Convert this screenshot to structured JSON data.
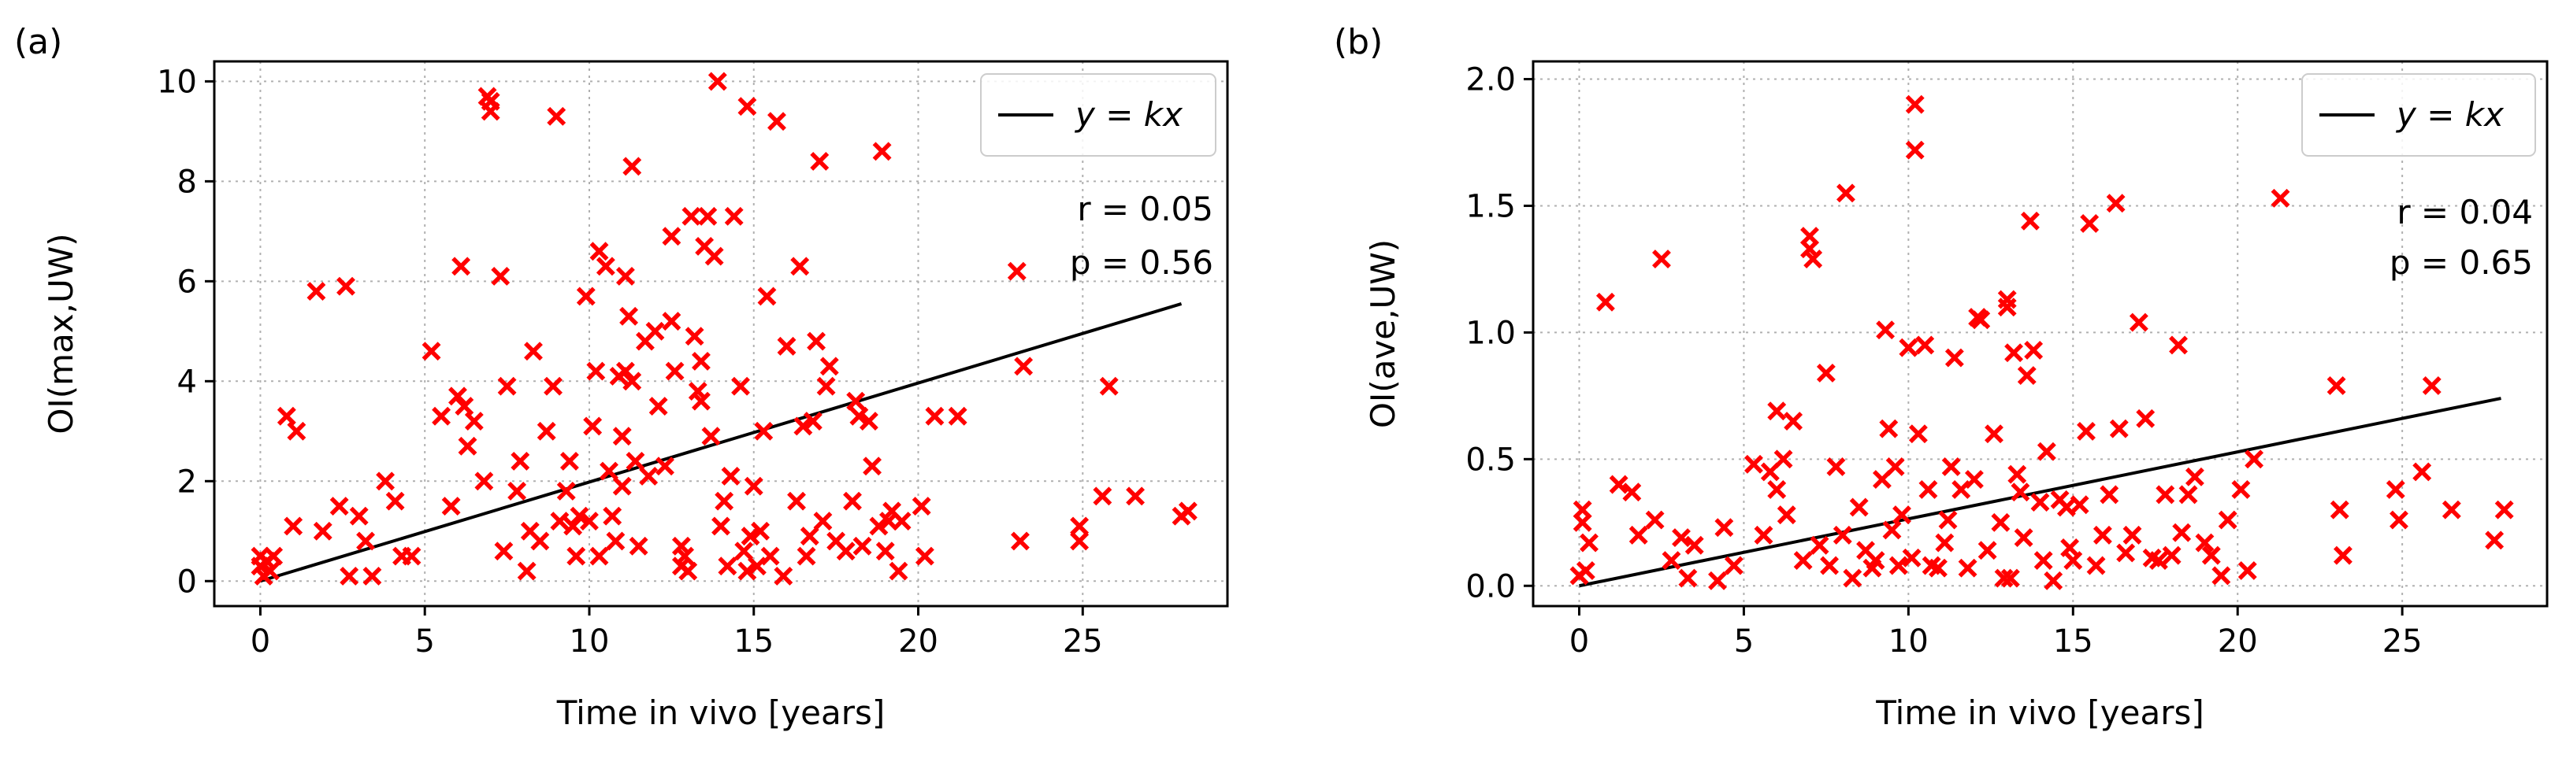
{
  "chart_data": [
    {
      "type": "scatter",
      "panel_label": "(a)",
      "xlabel": "Time in vivo [years]",
      "ylabel": "OI(max,UW)",
      "xlim": [
        -1.4,
        29.4
      ],
      "ylim": [
        -0.5,
        10.4
      ],
      "xticks": [
        0,
        5,
        10,
        15,
        20,
        25
      ],
      "yticks": [
        0,
        2,
        4,
        6,
        8,
        10
      ],
      "grid": true,
      "legend": {
        "label": "y = kx",
        "placement": "upper right"
      },
      "annotations": {
        "r": "r = 0.05",
        "p": "p = 0.56"
      },
      "colors": {
        "points": "#ff0000",
        "line": "#000000"
      },
      "fit_line": {
        "x": [
          0,
          28
        ],
        "y": [
          0,
          5.55
        ]
      },
      "points": [
        [
          0,
          0.5
        ],
        [
          0,
          0.3
        ],
        [
          0.1,
          0.1
        ],
        [
          0.2,
          0.4
        ],
        [
          0.3,
          0.2
        ],
        [
          0.4,
          0.5
        ],
        [
          0.8,
          3.3
        ],
        [
          1.0,
          1.1
        ],
        [
          1.1,
          3.0
        ],
        [
          1.7,
          5.8
        ],
        [
          1.9,
          1.0
        ],
        [
          2.4,
          1.5
        ],
        [
          2.6,
          5.9
        ],
        [
          2.7,
          0.1
        ],
        [
          3.0,
          1.3
        ],
        [
          3.2,
          0.8
        ],
        [
          3.4,
          0.1
        ],
        [
          3.8,
          2.0
        ],
        [
          4.1,
          1.6
        ],
        [
          4.3,
          0.5
        ],
        [
          4.6,
          0.5
        ],
        [
          5.2,
          4.6
        ],
        [
          5.5,
          3.3
        ],
        [
          5.8,
          1.5
        ],
        [
          6.0,
          3.7
        ],
        [
          6.1,
          6.3
        ],
        [
          6.2,
          3.5
        ],
        [
          6.3,
          2.7
        ],
        [
          6.5,
          3.2
        ],
        [
          6.8,
          2.0
        ],
        [
          6.9,
          9.7
        ],
        [
          7.0,
          9.4
        ],
        [
          7.0,
          9.6
        ],
        [
          7.3,
          6.1
        ],
        [
          7.4,
          0.6
        ],
        [
          7.5,
          3.9
        ],
        [
          7.8,
          1.8
        ],
        [
          7.9,
          2.4
        ],
        [
          8.1,
          0.2
        ],
        [
          8.2,
          1.0
        ],
        [
          8.3,
          4.6
        ],
        [
          8.5,
          0.8
        ],
        [
          8.7,
          3.0
        ],
        [
          8.9,
          3.9
        ],
        [
          9.0,
          9.3
        ],
        [
          9.1,
          1.2
        ],
        [
          9.3,
          1.8
        ],
        [
          9.4,
          2.4
        ],
        [
          9.5,
          1.1
        ],
        [
          9.6,
          0.5
        ],
        [
          9.7,
          1.3
        ],
        [
          9.9,
          5.7
        ],
        [
          10.0,
          1.2
        ],
        [
          10.1,
          3.1
        ],
        [
          10.2,
          4.2
        ],
        [
          10.3,
          0.5
        ],
        [
          10.3,
          6.6
        ],
        [
          10.5,
          6.3
        ],
        [
          10.6,
          2.2
        ],
        [
          10.7,
          1.3
        ],
        [
          10.8,
          0.8
        ],
        [
          10.9,
          4.1
        ],
        [
          11.0,
          2.9
        ],
        [
          11.0,
          1.9
        ],
        [
          11.1,
          6.1
        ],
        [
          11.1,
          4.2
        ],
        [
          11.2,
          5.3
        ],
        [
          11.3,
          8.3
        ],
        [
          11.3,
          4.0
        ],
        [
          11.4,
          2.4
        ],
        [
          11.5,
          0.7
        ],
        [
          11.7,
          4.8
        ],
        [
          11.8,
          2.1
        ],
        [
          12.0,
          5.0
        ],
        [
          12.1,
          3.5
        ],
        [
          12.3,
          2.3
        ],
        [
          12.5,
          5.2
        ],
        [
          12.5,
          6.9
        ],
        [
          12.6,
          4.2
        ],
        [
          12.8,
          0.3
        ],
        [
          12.8,
          0.7
        ],
        [
          12.9,
          0.5
        ],
        [
          13.0,
          0.2
        ],
        [
          13.1,
          7.3
        ],
        [
          13.2,
          4.9
        ],
        [
          13.3,
          3.8
        ],
        [
          13.4,
          4.4
        ],
        [
          13.4,
          3.6
        ],
        [
          13.5,
          6.7
        ],
        [
          13.6,
          7.3
        ],
        [
          13.7,
          2.9
        ],
        [
          13.8,
          6.5
        ],
        [
          13.9,
          10.0
        ],
        [
          14.0,
          1.1
        ],
        [
          14.1,
          1.6
        ],
        [
          14.2,
          0.3
        ],
        [
          14.3,
          2.1
        ],
        [
          14.4,
          7.3
        ],
        [
          14.6,
          3.9
        ],
        [
          14.7,
          0.6
        ],
        [
          14.8,
          9.5
        ],
        [
          14.8,
          0.2
        ],
        [
          14.9,
          0.9
        ],
        [
          15.0,
          1.9
        ],
        [
          15.1,
          0.3
        ],
        [
          15.2,
          1.0
        ],
        [
          15.3,
          3.0
        ],
        [
          15.4,
          5.7
        ],
        [
          15.5,
          0.5
        ],
        [
          15.7,
          9.2
        ],
        [
          15.9,
          0.1
        ],
        [
          16.0,
          4.7
        ],
        [
          16.3,
          1.6
        ],
        [
          16.4,
          6.3
        ],
        [
          16.5,
          3.1
        ],
        [
          16.6,
          0.5
        ],
        [
          16.7,
          0.9
        ],
        [
          16.8,
          3.2
        ],
        [
          16.9,
          4.8
        ],
        [
          17.0,
          8.4
        ],
        [
          17.1,
          1.2
        ],
        [
          17.2,
          3.9
        ],
        [
          17.3,
          4.3
        ],
        [
          17.5,
          0.8
        ],
        [
          17.8,
          0.6
        ],
        [
          18.0,
          1.6
        ],
        [
          18.1,
          3.6
        ],
        [
          18.2,
          3.3
        ],
        [
          18.3,
          0.7
        ],
        [
          18.5,
          3.2
        ],
        [
          18.6,
          2.3
        ],
        [
          18.8,
          1.1
        ],
        [
          18.9,
          8.6
        ],
        [
          19.0,
          0.6
        ],
        [
          19.1,
          1.2
        ],
        [
          19.2,
          1.4
        ],
        [
          19.4,
          0.2
        ],
        [
          19.5,
          1.2
        ],
        [
          20.1,
          1.5
        ],
        [
          20.2,
          0.5
        ],
        [
          20.5,
          3.3
        ],
        [
          21.2,
          3.3
        ],
        [
          23.0,
          6.2
        ],
        [
          23.1,
          0.8
        ],
        [
          23.2,
          4.3
        ],
        [
          24.9,
          1.1
        ],
        [
          24.9,
          0.8
        ],
        [
          25.6,
          1.7
        ],
        [
          25.8,
          3.9
        ],
        [
          26.6,
          1.7
        ],
        [
          28.0,
          1.3
        ],
        [
          28.2,
          1.4
        ]
      ]
    },
    {
      "type": "scatter",
      "panel_label": "(b)",
      "xlabel": "Time in vivo [years]",
      "ylabel": "OI(ave,UW)",
      "xlim": [
        -1.4,
        29.4
      ],
      "ylim": [
        -0.08,
        2.07
      ],
      "xticks": [
        0,
        5,
        10,
        15,
        20,
        25
      ],
      "yticks": [
        0.0,
        0.5,
        1.0,
        1.5,
        2.0
      ],
      "ytick_labels": [
        "0.0",
        "0.5",
        "1.0",
        "1.5",
        "2.0"
      ],
      "grid": true,
      "legend": {
        "label": "y = kx",
        "placement": "upper right"
      },
      "annotations": {
        "r": "r = 0.04",
        "p": "p = 0.65"
      },
      "colors": {
        "points": "#ff0000",
        "line": "#000000"
      },
      "fit_line": {
        "x": [
          0,
          28
        ],
        "y": [
          0,
          0.74
        ]
      },
      "points": [
        [
          0.0,
          0.04
        ],
        [
          0.1,
          0.3
        ],
        [
          0.1,
          0.25
        ],
        [
          0.2,
          0.06
        ],
        [
          0.3,
          0.17
        ],
        [
          0.8,
          1.12
        ],
        [
          1.2,
          0.4
        ],
        [
          1.6,
          0.37
        ],
        [
          1.8,
          0.2
        ],
        [
          2.3,
          0.26
        ],
        [
          2.5,
          1.29
        ],
        [
          2.8,
          0.1
        ],
        [
          3.1,
          0.19
        ],
        [
          3.3,
          0.03
        ],
        [
          3.5,
          0.16
        ],
        [
          4.2,
          0.02
        ],
        [
          4.4,
          0.23
        ],
        [
          4.7,
          0.08
        ],
        [
          5.3,
          0.48
        ],
        [
          5.6,
          0.2
        ],
        [
          5.8,
          0.45
        ],
        [
          6.0,
          0.38
        ],
        [
          6.0,
          0.69
        ],
        [
          6.2,
          0.5
        ],
        [
          6.3,
          0.28
        ],
        [
          6.5,
          0.65
        ],
        [
          6.8,
          0.1
        ],
        [
          7.0,
          1.38
        ],
        [
          7.0,
          1.33
        ],
        [
          7.1,
          1.29
        ],
        [
          7.3,
          0.16
        ],
        [
          7.5,
          0.84
        ],
        [
          7.6,
          0.08
        ],
        [
          7.8,
          0.47
        ],
        [
          8.0,
          0.2
        ],
        [
          8.1,
          1.55
        ],
        [
          8.3,
          0.03
        ],
        [
          8.5,
          0.31
        ],
        [
          8.7,
          0.14
        ],
        [
          8.9,
          0.07
        ],
        [
          9.0,
          0.1
        ],
        [
          9.2,
          0.42
        ],
        [
          9.3,
          1.01
        ],
        [
          9.4,
          0.62
        ],
        [
          9.5,
          0.22
        ],
        [
          9.6,
          0.47
        ],
        [
          9.7,
          0.08
        ],
        [
          9.8,
          0.28
        ],
        [
          10.0,
          0.94
        ],
        [
          10.1,
          0.11
        ],
        [
          10.2,
          1.9
        ],
        [
          10.2,
          1.72
        ],
        [
          10.3,
          0.6
        ],
        [
          10.5,
          0.95
        ],
        [
          10.6,
          0.38
        ],
        [
          10.7,
          0.08
        ],
        [
          10.9,
          0.07
        ],
        [
          11.1,
          0.17
        ],
        [
          11.2,
          0.26
        ],
        [
          11.3,
          0.47
        ],
        [
          11.4,
          0.9
        ],
        [
          11.6,
          0.38
        ],
        [
          11.8,
          0.07
        ],
        [
          12.0,
          0.42
        ],
        [
          12.1,
          1.06
        ],
        [
          12.2,
          1.05
        ],
        [
          12.4,
          0.14
        ],
        [
          12.6,
          0.6
        ],
        [
          12.8,
          0.25
        ],
        [
          12.9,
          0.03
        ],
        [
          13.0,
          1.1
        ],
        [
          13.0,
          1.13
        ],
        [
          13.1,
          0.03
        ],
        [
          13.2,
          0.92
        ],
        [
          13.3,
          0.44
        ],
        [
          13.4,
          0.37
        ],
        [
          13.5,
          0.19
        ],
        [
          13.6,
          0.83
        ],
        [
          13.7,
          1.44
        ],
        [
          13.8,
          0.93
        ],
        [
          14.0,
          0.33
        ],
        [
          14.1,
          0.1
        ],
        [
          14.2,
          0.53
        ],
        [
          14.4,
          0.02
        ],
        [
          14.6,
          0.34
        ],
        [
          14.8,
          0.31
        ],
        [
          14.9,
          0.15
        ],
        [
          15.0,
          0.1
        ],
        [
          15.2,
          0.32
        ],
        [
          15.4,
          0.61
        ],
        [
          15.5,
          1.43
        ],
        [
          15.7,
          0.08
        ],
        [
          15.9,
          0.2
        ],
        [
          16.1,
          0.36
        ],
        [
          16.3,
          1.51
        ],
        [
          16.4,
          0.62
        ],
        [
          16.6,
          0.13
        ],
        [
          16.8,
          0.2
        ],
        [
          17.0,
          1.04
        ],
        [
          17.2,
          0.66
        ],
        [
          17.4,
          0.11
        ],
        [
          17.6,
          0.1
        ],
        [
          17.8,
          0.36
        ],
        [
          18.0,
          0.12
        ],
        [
          18.2,
          0.95
        ],
        [
          18.3,
          0.21
        ],
        [
          18.5,
          0.36
        ],
        [
          18.7,
          0.43
        ],
        [
          19.0,
          0.17
        ],
        [
          19.2,
          0.12
        ],
        [
          19.5,
          0.04
        ],
        [
          19.7,
          0.26
        ],
        [
          20.1,
          0.38
        ],
        [
          20.3,
          0.06
        ],
        [
          20.5,
          0.5
        ],
        [
          21.3,
          1.53
        ],
        [
          23.0,
          0.79
        ],
        [
          23.1,
          0.3
        ],
        [
          23.2,
          0.12
        ],
        [
          24.8,
          0.38
        ],
        [
          24.9,
          0.26
        ],
        [
          25.6,
          0.45
        ],
        [
          25.9,
          0.79
        ],
        [
          26.5,
          0.3
        ],
        [
          27.8,
          0.18
        ],
        [
          28.1,
          0.3
        ]
      ]
    }
  ]
}
